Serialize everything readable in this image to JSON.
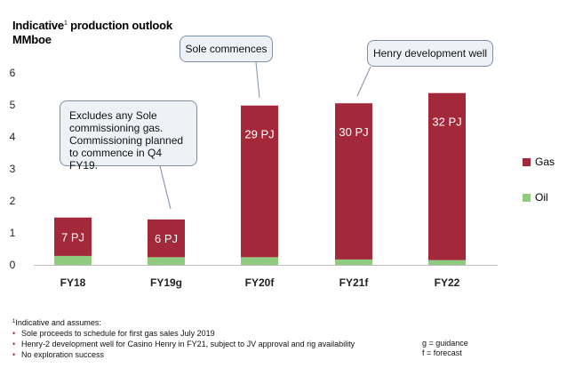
{
  "chart_data": {
    "type": "bar",
    "stacked": true,
    "title_main": "Indicative",
    "title_sup": "1",
    "title_rest": " production outlook",
    "ylabel": "MMboe",
    "ylim": [
      0,
      6
    ],
    "yticks": [
      "0",
      "1",
      "2",
      "3",
      "4",
      "5",
      "6"
    ],
    "categories": [
      "FY18",
      "FY19g",
      "FY20f",
      "FY21f",
      "FY22"
    ],
    "series": [
      {
        "name": "Oil",
        "color": "#8fcb7f",
        "values": [
          0.28,
          0.24,
          0.24,
          0.17,
          0.15
        ]
      },
      {
        "name": "Gas",
        "color": "#a3293a",
        "values": [
          1.2,
          1.18,
          4.74,
          4.88,
          5.22
        ]
      }
    ],
    "bar_labels": [
      "7 PJ",
      "6 PJ",
      "29 PJ",
      "30 PJ",
      "32 PJ"
    ],
    "legend": [
      {
        "label": "Gas",
        "color": "#a3293a"
      },
      {
        "label": "Oil",
        "color": "#8fcb7f"
      }
    ],
    "annotations": [
      {
        "text": "Excludes any Sole commissioning gas. Commissioning planned to commence in Q4 FY19.",
        "category": "FY19g"
      },
      {
        "text": "Sole commences",
        "category": "FY20f"
      },
      {
        "text": "Henry development well",
        "category": "FY21f"
      }
    ]
  },
  "footnotes": {
    "intro_sup": "1",
    "intro": "Indicative and assumes:",
    "items": [
      "Sole proceeds to schedule for first gas sales July 2019",
      "Henry-2 development well for Casino Henry in FY21, subject to JV approval and rig availability",
      "No exploration success"
    ]
  },
  "key_notes": [
    "g = guidance",
    "f = forecast"
  ]
}
